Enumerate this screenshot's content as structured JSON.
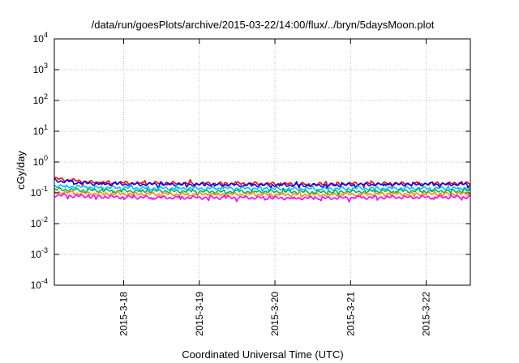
{
  "chart_data": {
    "type": "line",
    "title": "/data/run/goesPlots/archive/2015-03-22/14:00/flux/../bryn/5daysMoon.plot",
    "xlabel": "Coordinated Universal Time (UTC)",
    "ylabel": "cGy/day",
    "yscale": "log",
    "ylim": [
      0.0001,
      10000
    ],
    "xlim": [
      "2015-03-17 02:00",
      "2015-03-22 14:00"
    ],
    "grid": true,
    "x_ticks": [
      "2015-3-18",
      "2015-3-19",
      "2015-3-20",
      "2015-3-21",
      "2015-3-22"
    ],
    "y_ticks": [
      {
        "base": "10",
        "exp": "-4",
        "value": 0.0001
      },
      {
        "base": "10",
        "exp": "-3",
        "value": 0.001
      },
      {
        "base": "10",
        "exp": "-2",
        "value": 0.01
      },
      {
        "base": "10",
        "exp": "-1",
        "value": 0.1
      },
      {
        "base": "10",
        "exp": "0",
        "value": 1
      },
      {
        "base": "10",
        "exp": "1",
        "value": 10
      },
      {
        "base": "10",
        "exp": "2",
        "value": 100
      },
      {
        "base": "10",
        "exp": "3",
        "value": 1000
      },
      {
        "base": "10",
        "exp": "4",
        "value": 10000
      }
    ],
    "series": [
      {
        "color": "#ff0000",
        "values": [
          0.29,
          0.22,
          0.21,
          0.205,
          0.2,
          0.2,
          0.195,
          0.19,
          0.2,
          0.2,
          0.2,
          0.2
        ]
      },
      {
        "color": "#0000ff",
        "values": [
          0.25,
          0.2,
          0.19,
          0.19,
          0.185,
          0.18,
          0.18,
          0.175,
          0.185,
          0.19,
          0.19,
          0.19
        ]
      },
      {
        "color": "#00bfff",
        "values": [
          0.17,
          0.15,
          0.145,
          0.14,
          0.14,
          0.14,
          0.135,
          0.135,
          0.14,
          0.14,
          0.14,
          0.14
        ]
      },
      {
        "color": "#00b060",
        "values": [
          0.13,
          0.12,
          0.115,
          0.115,
          0.11,
          0.11,
          0.11,
          0.105,
          0.11,
          0.115,
          0.115,
          0.115
        ]
      },
      {
        "color": "#ff8c00",
        "values": [
          0.105,
          0.095,
          0.092,
          0.09,
          0.09,
          0.09,
          0.088,
          0.087,
          0.09,
          0.092,
          0.092,
          0.093
        ]
      },
      {
        "color": "#ff00ff",
        "values": [
          0.085,
          0.075,
          0.072,
          0.07,
          0.07,
          0.07,
          0.068,
          0.067,
          0.07,
          0.072,
          0.072,
          0.073
        ]
      }
    ]
  }
}
